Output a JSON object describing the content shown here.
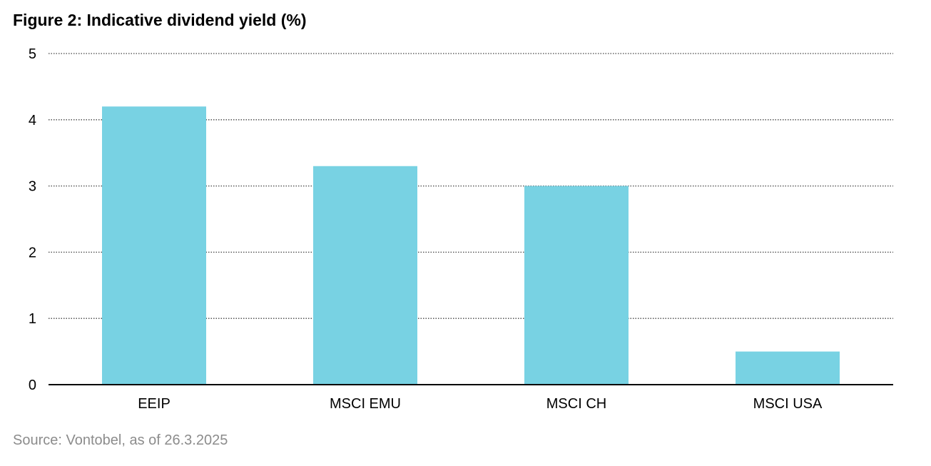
{
  "header": {
    "title": "Figure 2: Indicative dividend yield (%)"
  },
  "footer": {
    "source": "Source: Vontobel, as of 26.3.2025"
  },
  "colors": {
    "bar": "#78d2e3",
    "gridline": "#444444",
    "axis": "#000000",
    "source_text": "#8c8c8c"
  },
  "chart_data": {
    "type": "bar",
    "title": "Figure 2: Indicative dividend yield (%)",
    "categories": [
      "EEIP",
      "MSCI EMU",
      "MSCI CH",
      "MSCI USA"
    ],
    "values": [
      4.2,
      3.3,
      3.0,
      0.5
    ],
    "ylim": [
      0,
      5
    ],
    "yticks": [
      "0",
      "1",
      "2",
      "3",
      "4",
      "5"
    ],
    "xlabel": "",
    "ylabel": "",
    "grid": "horizontal dotted",
    "legend": "none"
  }
}
